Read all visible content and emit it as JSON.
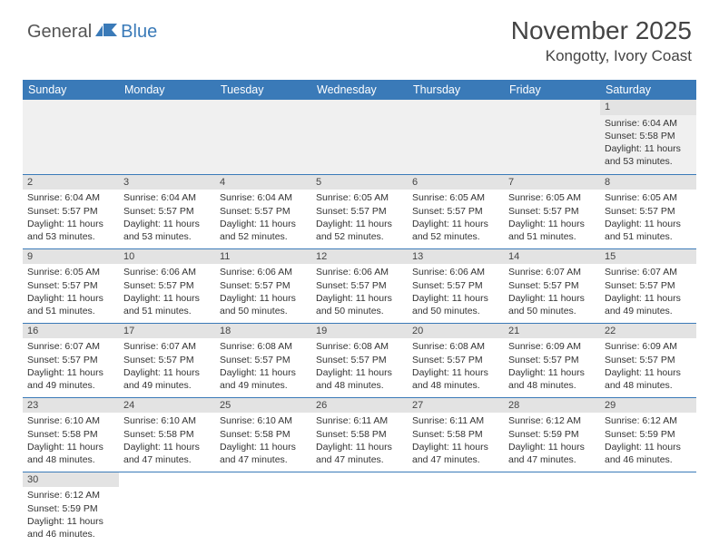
{
  "logo": {
    "text1": "General",
    "text2": "Blue"
  },
  "title": "November 2025",
  "location": "Kongotty, Ivory Coast",
  "colors": {
    "header_bg": "#3a7ab8",
    "header_text": "#ffffff",
    "daynum_bg": "#e3e3e3",
    "first_row_bg": "#f0f0f0",
    "border": "#3a7ab8",
    "body_text": "#333333"
  },
  "daynames": [
    "Sunday",
    "Monday",
    "Tuesday",
    "Wednesday",
    "Thursday",
    "Friday",
    "Saturday"
  ],
  "weeks": [
    [
      {
        "empty": true
      },
      {
        "empty": true
      },
      {
        "empty": true
      },
      {
        "empty": true
      },
      {
        "empty": true
      },
      {
        "empty": true
      },
      {
        "n": "1",
        "sr": "6:04 AM",
        "ss": "5:58 PM",
        "dl": "11 hours and 53 minutes."
      }
    ],
    [
      {
        "n": "2",
        "sr": "6:04 AM",
        "ss": "5:57 PM",
        "dl": "11 hours and 53 minutes."
      },
      {
        "n": "3",
        "sr": "6:04 AM",
        "ss": "5:57 PM",
        "dl": "11 hours and 53 minutes."
      },
      {
        "n": "4",
        "sr": "6:04 AM",
        "ss": "5:57 PM",
        "dl": "11 hours and 52 minutes."
      },
      {
        "n": "5",
        "sr": "6:05 AM",
        "ss": "5:57 PM",
        "dl": "11 hours and 52 minutes."
      },
      {
        "n": "6",
        "sr": "6:05 AM",
        "ss": "5:57 PM",
        "dl": "11 hours and 52 minutes."
      },
      {
        "n": "7",
        "sr": "6:05 AM",
        "ss": "5:57 PM",
        "dl": "11 hours and 51 minutes."
      },
      {
        "n": "8",
        "sr": "6:05 AM",
        "ss": "5:57 PM",
        "dl": "11 hours and 51 minutes."
      }
    ],
    [
      {
        "n": "9",
        "sr": "6:05 AM",
        "ss": "5:57 PM",
        "dl": "11 hours and 51 minutes."
      },
      {
        "n": "10",
        "sr": "6:06 AM",
        "ss": "5:57 PM",
        "dl": "11 hours and 51 minutes."
      },
      {
        "n": "11",
        "sr": "6:06 AM",
        "ss": "5:57 PM",
        "dl": "11 hours and 50 minutes."
      },
      {
        "n": "12",
        "sr": "6:06 AM",
        "ss": "5:57 PM",
        "dl": "11 hours and 50 minutes."
      },
      {
        "n": "13",
        "sr": "6:06 AM",
        "ss": "5:57 PM",
        "dl": "11 hours and 50 minutes."
      },
      {
        "n": "14",
        "sr": "6:07 AM",
        "ss": "5:57 PM",
        "dl": "11 hours and 50 minutes."
      },
      {
        "n": "15",
        "sr": "6:07 AM",
        "ss": "5:57 PM",
        "dl": "11 hours and 49 minutes."
      }
    ],
    [
      {
        "n": "16",
        "sr": "6:07 AM",
        "ss": "5:57 PM",
        "dl": "11 hours and 49 minutes."
      },
      {
        "n": "17",
        "sr": "6:07 AM",
        "ss": "5:57 PM",
        "dl": "11 hours and 49 minutes."
      },
      {
        "n": "18",
        "sr": "6:08 AM",
        "ss": "5:57 PM",
        "dl": "11 hours and 49 minutes."
      },
      {
        "n": "19",
        "sr": "6:08 AM",
        "ss": "5:57 PM",
        "dl": "11 hours and 48 minutes."
      },
      {
        "n": "20",
        "sr": "6:08 AM",
        "ss": "5:57 PM",
        "dl": "11 hours and 48 minutes."
      },
      {
        "n": "21",
        "sr": "6:09 AM",
        "ss": "5:57 PM",
        "dl": "11 hours and 48 minutes."
      },
      {
        "n": "22",
        "sr": "6:09 AM",
        "ss": "5:57 PM",
        "dl": "11 hours and 48 minutes."
      }
    ],
    [
      {
        "n": "23",
        "sr": "6:10 AM",
        "ss": "5:58 PM",
        "dl": "11 hours and 48 minutes."
      },
      {
        "n": "24",
        "sr": "6:10 AM",
        "ss": "5:58 PM",
        "dl": "11 hours and 47 minutes."
      },
      {
        "n": "25",
        "sr": "6:10 AM",
        "ss": "5:58 PM",
        "dl": "11 hours and 47 minutes."
      },
      {
        "n": "26",
        "sr": "6:11 AM",
        "ss": "5:58 PM",
        "dl": "11 hours and 47 minutes."
      },
      {
        "n": "27",
        "sr": "6:11 AM",
        "ss": "5:58 PM",
        "dl": "11 hours and 47 minutes."
      },
      {
        "n": "28",
        "sr": "6:12 AM",
        "ss": "5:59 PM",
        "dl": "11 hours and 47 minutes."
      },
      {
        "n": "29",
        "sr": "6:12 AM",
        "ss": "5:59 PM",
        "dl": "11 hours and 46 minutes."
      }
    ],
    [
      {
        "n": "30",
        "sr": "6:12 AM",
        "ss": "5:59 PM",
        "dl": "11 hours and 46 minutes."
      },
      {
        "empty": true
      },
      {
        "empty": true
      },
      {
        "empty": true
      },
      {
        "empty": true
      },
      {
        "empty": true
      },
      {
        "empty": true
      }
    ]
  ],
  "labels": {
    "sunrise": "Sunrise: ",
    "sunset": "Sunset: ",
    "daylight": "Daylight: "
  }
}
